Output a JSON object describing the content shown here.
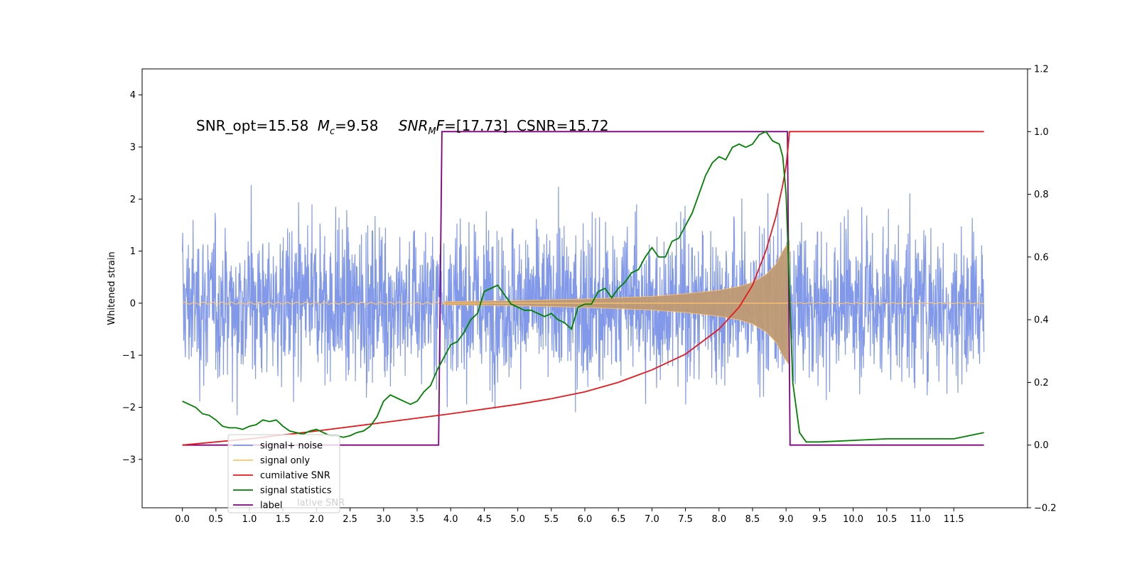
{
  "chart_data": {
    "type": "line",
    "annotation": {
      "snr_opt": "SNR_opt=15.58",
      "mc_symbol": "M",
      "mc_sub": "c",
      "mc_value": "=9.58",
      "snr_mf_symbol": "SNR",
      "snr_mf_sub": "M",
      "snr_mf_f": "F",
      "snr_mf_value": "=[17.73]",
      "csnr": "CSNR=15.72"
    },
    "ylabel_left": "Whitened strain",
    "xlabel": "",
    "x_ticks": [
      "0.0",
      "0.5",
      "1.0",
      "1.5",
      "2.0",
      "2.5",
      "3.0",
      "3.5",
      "4.0",
      "4.5",
      "5.0",
      "5.5",
      "6.0",
      "6.5",
      "7.0",
      "7.5",
      "8.0",
      "8.5",
      "9.0",
      "9.5",
      "10.0",
      "10.5",
      "11.0",
      "11.5"
    ],
    "y_left_ticks": [
      "4",
      "3",
      "2",
      "1",
      "0",
      "−1",
      "−2",
      "−3"
    ],
    "y_right_ticks": [
      "1.2",
      "1.0",
      "0.8",
      "0.6",
      "0.4",
      "0.2",
      "0.0",
      "−0.2"
    ],
    "xlim": [
      -0.6,
      12.6
    ],
    "ylim_left": [
      -3.93,
      4.5
    ],
    "ylim_right": [
      -0.2,
      1.2
    ],
    "signal_window": [
      3.85,
      9.05
    ],
    "legend_position": "lower-left",
    "legend": [
      {
        "label": "signal+ noise",
        "color": "#7b93e8"
      },
      {
        "label": "signal only",
        "color": "#ffc66e"
      },
      {
        "label": "cumilative SNR",
        "color": "#e41a1c"
      },
      {
        "label": "signal statistics",
        "color": "#008000"
      },
      {
        "label": "label",
        "color": "#7f007f"
      }
    ],
    "legend_ghost_text": "lative SNR",
    "series": [
      {
        "name": "label",
        "axis": "right",
        "x": [
          0.0,
          3.82,
          3.87,
          9.02,
          9.06,
          11.95
        ],
        "y": [
          0.0,
          0.0,
          1.0,
          1.0,
          0.0,
          0.0
        ]
      },
      {
        "name": "cumilative SNR",
        "axis": "right",
        "x": [
          0.0,
          1.0,
          2.0,
          3.0,
          4.0,
          5.0,
          5.5,
          6.0,
          6.5,
          7.0,
          7.5,
          8.0,
          8.3,
          8.5,
          8.7,
          8.85,
          8.95,
          9.0,
          9.03,
          9.05,
          11.95
        ],
        "y": [
          0.0,
          0.02,
          0.045,
          0.072,
          0.1,
          0.13,
          0.148,
          0.17,
          0.2,
          0.24,
          0.29,
          0.37,
          0.44,
          0.51,
          0.62,
          0.73,
          0.83,
          0.89,
          0.95,
          1.0,
          1.0
        ]
      },
      {
        "name": "signal statistics",
        "axis": "right",
        "x": [
          0.0,
          0.1,
          0.2,
          0.3,
          0.4,
          0.5,
          0.6,
          0.7,
          0.8,
          0.9,
          1.0,
          1.1,
          1.2,
          1.3,
          1.4,
          1.5,
          1.6,
          1.7,
          1.8,
          1.9,
          2.0,
          2.1,
          2.2,
          2.3,
          2.4,
          2.5,
          2.6,
          2.7,
          2.8,
          2.9,
          3.0,
          3.1,
          3.2,
          3.3,
          3.4,
          3.5,
          3.6,
          3.7,
          3.8,
          3.9,
          4.0,
          4.1,
          4.2,
          4.3,
          4.4,
          4.5,
          4.6,
          4.7,
          4.8,
          4.9,
          5.0,
          5.1,
          5.2,
          5.3,
          5.4,
          5.5,
          5.6,
          5.7,
          5.8,
          5.9,
          6.0,
          6.1,
          6.2,
          6.3,
          6.4,
          6.5,
          6.6,
          6.7,
          6.8,
          6.9,
          7.0,
          7.1,
          7.2,
          7.3,
          7.4,
          7.5,
          7.6,
          7.7,
          7.8,
          7.9,
          8.0,
          8.1,
          8.2,
          8.3,
          8.4,
          8.5,
          8.6,
          8.7,
          8.8,
          8.9,
          8.95,
          9.0,
          9.05,
          9.1,
          9.2,
          9.3,
          9.5,
          10.0,
          10.5,
          11.0,
          11.5,
          11.95
        ],
        "y": [
          0.14,
          0.13,
          0.12,
          0.1,
          0.095,
          0.08,
          0.06,
          0.055,
          0.055,
          0.05,
          0.06,
          0.065,
          0.08,
          0.075,
          0.08,
          0.06,
          0.045,
          0.04,
          0.035,
          0.045,
          0.05,
          0.04,
          0.03,
          0.03,
          0.025,
          0.03,
          0.04,
          0.045,
          0.06,
          0.09,
          0.14,
          0.16,
          0.15,
          0.14,
          0.13,
          0.14,
          0.17,
          0.19,
          0.24,
          0.28,
          0.32,
          0.33,
          0.36,
          0.4,
          0.42,
          0.49,
          0.5,
          0.51,
          0.48,
          0.45,
          0.44,
          0.43,
          0.43,
          0.42,
          0.41,
          0.42,
          0.4,
          0.39,
          0.37,
          0.44,
          0.45,
          0.45,
          0.49,
          0.5,
          0.47,
          0.5,
          0.52,
          0.55,
          0.56,
          0.6,
          0.63,
          0.6,
          0.6,
          0.65,
          0.66,
          0.7,
          0.74,
          0.8,
          0.86,
          0.9,
          0.92,
          0.91,
          0.95,
          0.96,
          0.95,
          0.96,
          0.99,
          1.0,
          0.97,
          0.96,
          0.92,
          0.8,
          0.5,
          0.2,
          0.04,
          0.01,
          0.01,
          0.015,
          0.02,
          0.02,
          0.02,
          0.04
        ]
      }
    ],
    "signal_plus_noise_amplitude": {
      "x": [
        0.0,
        11.95
      ],
      "y": [
        2.6,
        -2.6
      ]
    },
    "signal_only_envelope": {
      "x": [
        3.9,
        5.0,
        6.0,
        7.0,
        7.5,
        8.0,
        8.3,
        8.5,
        8.7,
        8.85,
        8.95,
        9.05
      ],
      "y": [
        0.03,
        0.05,
        0.08,
        0.13,
        0.18,
        0.25,
        0.32,
        0.4,
        0.55,
        0.75,
        1.0,
        1.2
      ]
    }
  }
}
